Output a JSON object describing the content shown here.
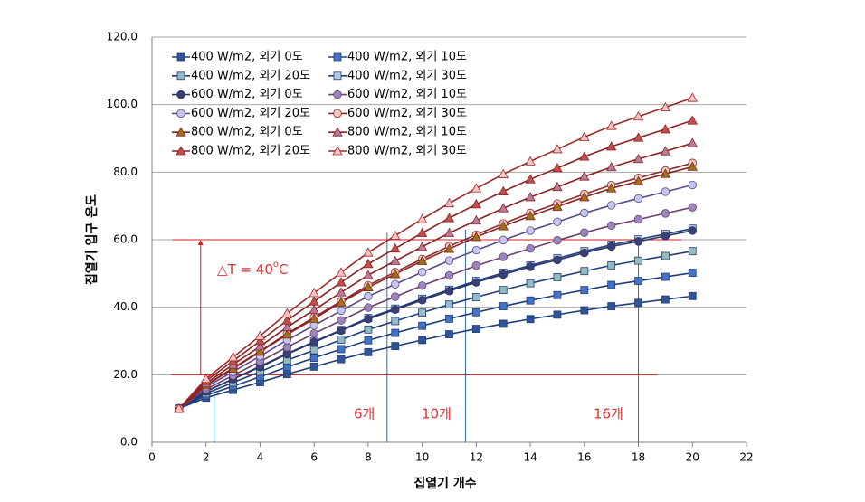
{
  "chart_data": {
    "type": "line",
    "xlabel": "집열기 개수",
    "ylabel": "집열기 입구 온도",
    "x": [
      1,
      2,
      3,
      4,
      5,
      6,
      7,
      8,
      9,
      10,
      11,
      12,
      13,
      14,
      15,
      16,
      17,
      18,
      19,
      20
    ],
    "xlim": [
      0,
      22
    ],
    "xticks": [
      0,
      2,
      4,
      6,
      8,
      10,
      12,
      14,
      16,
      18,
      20,
      22
    ],
    "ylim": [
      0,
      120
    ],
    "yticks": [
      {
        "value": 0,
        "label": "0.0"
      },
      {
        "value": 20,
        "label": "20.0"
      },
      {
        "value": 40,
        "label": "40.0"
      },
      {
        "value": 60,
        "label": "60.0"
      },
      {
        "value": 80,
        "label": "80.0"
      },
      {
        "value": 100,
        "label": "100.0"
      },
      {
        "value": 120,
        "label": "120.0"
      }
    ],
    "grid": true,
    "legend": "upper left",
    "series": [
      {
        "name": "400 W/m2, 외기 0도",
        "color": "#2f5597",
        "line": "#1f3e78",
        "marker": "square",
        "values": [
          10,
          13.2,
          15.5,
          17.8,
          20.2,
          22.4,
          24.6,
          26.7,
          28.5,
          30.3,
          32,
          33.6,
          35.1,
          36.5,
          37.8,
          39.1,
          40.3,
          41.3,
          42.3,
          43.3
        ]
      },
      {
        "name": "400 W/m2, 외기 10도",
        "color": "#4472c4",
        "line": "#1f3e78",
        "marker": "square",
        "values": [
          10,
          13.9,
          16.6,
          19.4,
          22.3,
          25.0,
          27.6,
          30.2,
          32.4,
          34.5,
          36.6,
          38.5,
          40.3,
          42.0,
          43.6,
          45.1,
          46.6,
          47.8,
          49.0,
          50.2
        ]
      },
      {
        "name": "400 W/m2, 외기 20도",
        "color": "#93bcc0",
        "line": "#1f3e78",
        "marker": "square",
        "values": [
          10,
          14.5,
          17.7,
          20.9,
          24.3,
          27.3,
          30.4,
          33.4,
          35.9,
          38.4,
          40.8,
          43.0,
          45.1,
          47.1,
          48.9,
          50.7,
          52.4,
          53.8,
          55.2,
          56.6
        ]
      },
      {
        "name": "400 W/m2, 외기 30도",
        "color": "#b4cdea",
        "line": "#1f3e78",
        "marker": "square",
        "values": [
          10,
          15.1,
          18.8,
          22.5,
          26.3,
          29.8,
          33.3,
          36.8,
          39.6,
          42.5,
          45.2,
          47.8,
          50.2,
          52.4,
          54.5,
          56.6,
          58.5,
          60.1,
          61.7,
          63.3
        ]
      },
      {
        "name": "600 W/m2, 외기 0도",
        "color": "#3a3f75",
        "line": "#2a3468",
        "marker": "circle",
        "values": [
          10,
          15.1,
          18.7,
          22.3,
          26.1,
          29.6,
          33.1,
          36.5,
          39.3,
          42.1,
          44.8,
          47.4,
          49.7,
          52.0,
          54.0,
          56.1,
          58.0,
          59.5,
          61.1,
          62.7
        ]
      },
      {
        "name": "600 W/m2, 외기 10도",
        "color": "#9b87c0",
        "line": "#6b3f6b",
        "marker": "circle",
        "values": [
          10,
          15.7,
          19.8,
          23.9,
          28.2,
          32.2,
          36.1,
          39.9,
          43.1,
          46.4,
          49.4,
          52.3,
          54.9,
          57.4,
          59.8,
          62.1,
          64.2,
          66.0,
          67.8,
          69.6
        ]
      },
      {
        "name": "600 W/m2, 외기 20도",
        "color": "#c3c6ee",
        "line": "#5a4a8a",
        "marker": "circle",
        "values": [
          10,
          16.4,
          20.9,
          25.5,
          30.3,
          34.6,
          39.0,
          43.2,
          46.8,
          50.4,
          53.8,
          56.9,
          59.9,
          62.7,
          65.3,
          67.9,
          70.2,
          72.2,
          74.2,
          76.2
        ]
      },
      {
        "name": "600 W/m2, 외기 30도",
        "color": "#f0c8c0",
        "line": "#8b2a2a",
        "marker": "circle",
        "values": [
          10,
          17.0,
          22.0,
          27.0,
          32.2,
          37.0,
          41.8,
          46.5,
          50.4,
          54.3,
          58.1,
          61.5,
          64.8,
          67.9,
          70.7,
          73.5,
          76.2,
          78.3,
          80.5,
          82.7
        ]
      },
      {
        "name": "800 W/m2, 외기 0도",
        "color": "#9a7418",
        "line": "#8b2020",
        "marker": "triangle",
        "values": [
          10,
          16.9,
          21.8,
          26.8,
          31.9,
          36.6,
          41.4,
          45.9,
          49.8,
          53.7,
          57.3,
          60.8,
          64.0,
          67.0,
          69.8,
          72.6,
          75.2,
          77.3,
          79.5,
          81.6
        ]
      },
      {
        "name": "800 W/m2, 외기 10도",
        "color": "#b87a9e",
        "line": "#8b2020",
        "marker": "triangle",
        "values": [
          10,
          17.5,
          23.0,
          28.4,
          34.1,
          39.2,
          44.4,
          49.5,
          53.7,
          57.9,
          62.0,
          65.7,
          69.3,
          72.6,
          75.6,
          78.7,
          81.5,
          83.9,
          86.2,
          88.6
        ]
      },
      {
        "name": "800 W/m2, 외기 20도",
        "color": "#c0504d",
        "line": "#8b2020",
        "marker": "triangle",
        "values": [
          10,
          18.2,
          24.1,
          30.0,
          36.1,
          41.7,
          47.4,
          52.8,
          57.4,
          62.0,
          66.4,
          70.5,
          74.3,
          77.9,
          81.2,
          84.6,
          87.6,
          90.2,
          92.7,
          95.3
        ]
      },
      {
        "name": "800 W/m2, 외기 30도",
        "color": "#f6c4c4",
        "line": "#a02828",
        "marker": "triangle",
        "values": [
          10,
          18.8,
          25.2,
          31.5,
          38.2,
          44.2,
          50.3,
          56.2,
          61.2,
          66.1,
          70.8,
          75.2,
          79.4,
          83.2,
          86.8,
          90.4,
          93.7,
          96.5,
          99.2,
          102
        ]
      }
    ],
    "hlines": [
      {
        "y": 60,
        "x": [
          0.75,
          19.6
        ]
      },
      {
        "y": 20,
        "x": [
          0.7,
          18.7
        ]
      }
    ],
    "arrow": {
      "x": 1.8,
      "y": [
        20,
        60
      ]
    },
    "vlines": [
      {
        "x": 2.3,
        "y": [
          0,
          20
        ]
      },
      {
        "x": 8.7,
        "y": [
          0,
          62
        ]
      },
      {
        "x": 11.6,
        "y": [
          0,
          63
        ]
      },
      {
        "x": 18,
        "y": [
          0,
          61
        ]
      }
    ],
    "delta_label": {
      "main": "△T = 40",
      "sup": "o",
      "unit": "C"
    },
    "count_labels": [
      "6개",
      "10개",
      "16개"
    ]
  }
}
